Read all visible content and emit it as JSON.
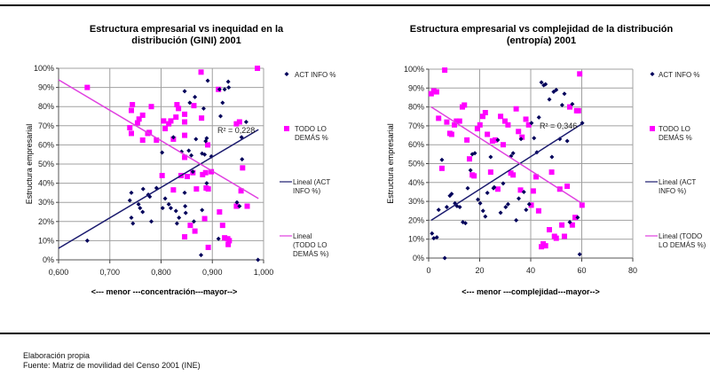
{
  "colors": {
    "act": "#00005A",
    "other": "#FF00FF",
    "trend_act": "#1A1A6E",
    "trend_other": "#E040E0",
    "grid": "#A0A0A0"
  },
  "legend": {
    "act": "ACT INFO %",
    "other": "TODO LO DEMÁS %",
    "trend_act": "Lineal (ACT INFO %)",
    "trend_other": "Lineal (TODO LO DEMÁS %)"
  },
  "footer": {
    "line1": "Elaboración propia",
    "line2": "Fuente: Matriz de movilidad del Censo 2001 (INE)"
  },
  "chart_data": [
    {
      "type": "scatter",
      "title": "Estructura empresarial vs inequidad en la distribución (GINI) 2001",
      "title_lines": [
        "Estructura empresarial vs inequidad en la",
        "distribución (GINI) 2001"
      ],
      "xlabel": "<--- menor ---concentración---mayor-->",
      "ylabel": "Estructura empresarial",
      "xlim": [
        0.6,
        1.0
      ],
      "ylim": [
        0,
        100
      ],
      "xticks": [
        "0,600",
        "0,700",
        "0,800",
        "0,900",
        "1,000"
      ],
      "yticks": [
        "0%",
        "10%",
        "20%",
        "30%",
        "40%",
        "50%",
        "60%",
        "70%",
        "80%",
        "90%",
        "100%"
      ],
      "grid": true,
      "legend_position": "right",
      "r_squared_label": "R² = 0,228",
      "series": [
        {
          "name": "ACT INFO %",
          "marker": "diamond",
          "points": [
            [
              0.656,
              10
            ],
            [
              0.742,
              35
            ],
            [
              0.739,
              31
            ],
            [
              0.742,
              22
            ],
            [
              0.745,
              19
            ],
            [
              0.765,
              37
            ],
            [
              0.756,
              29
            ],
            [
              0.759,
              27
            ],
            [
              0.764,
              25
            ],
            [
              0.775,
              34
            ],
            [
              0.778,
              33
            ],
            [
              0.781,
              20
            ],
            [
              0.791,
              37.5
            ],
            [
              0.802,
              56
            ],
            [
              0.803,
              27
            ],
            [
              0.808,
              32
            ],
            [
              0.815,
              29
            ],
            [
              0.819,
              27
            ],
            [
              0.824,
              64
            ],
            [
              0.829,
              25.5
            ],
            [
              0.831,
              19
            ],
            [
              0.835,
              22
            ],
            [
              0.84,
              56.5
            ],
            [
              0.846,
              88
            ],
            [
              0.846,
              35
            ],
            [
              0.847,
              28
            ],
            [
              0.848,
              24.5
            ],
            [
              0.854,
              57
            ],
            [
              0.856,
              82
            ],
            [
              0.859,
              54.5
            ],
            [
              0.862,
              46
            ],
            [
              0.864,
              20
            ],
            [
              0.866,
              85
            ],
            [
              0.868,
              63
            ],
            [
              0.878,
              2.5
            ],
            [
              0.88,
              26
            ],
            [
              0.88,
              55.5
            ],
            [
              0.883,
              79
            ],
            [
              0.885,
              55
            ],
            [
              0.887,
              62
            ],
            [
              0.889,
              63.5
            ],
            [
              0.889,
              40
            ],
            [
              0.891,
              93.5
            ],
            [
              0.898,
              54
            ],
            [
              0.912,
              11
            ],
            [
              0.914,
              89
            ],
            [
              0.916,
              75
            ],
            [
              0.92,
              82
            ],
            [
              0.924,
              89
            ],
            [
              0.931,
              93
            ],
            [
              0.932,
              90
            ],
            [
              0.948,
              30
            ],
            [
              0.953,
              28
            ],
            [
              0.957,
              64
            ],
            [
              0.958,
              52.5
            ],
            [
              0.966,
              72
            ],
            [
              0.989,
              0
            ]
          ]
        },
        {
          "name": "TODO LO DEMÁS %",
          "marker": "square",
          "points": [
            [
              0.656,
              90
            ],
            [
              0.739,
              69
            ],
            [
              0.742,
              66
            ],
            [
              0.742,
              78
            ],
            [
              0.744,
              81
            ],
            [
              0.754,
              71.5
            ],
            [
              0.757,
              73.5
            ],
            [
              0.764,
              75.5
            ],
            [
              0.764,
              62.5
            ],
            [
              0.774,
              66
            ],
            [
              0.777,
              66.5
            ],
            [
              0.781,
              80
            ],
            [
              0.791,
              62.5
            ],
            [
              0.802,
              44
            ],
            [
              0.805,
              72.5
            ],
            [
              0.808,
              68.5
            ],
            [
              0.815,
              71
            ],
            [
              0.819,
              72.5
            ],
            [
              0.824,
              63
            ],
            [
              0.824,
              36.5
            ],
            [
              0.829,
              74.5
            ],
            [
              0.831,
              81
            ],
            [
              0.834,
              79
            ],
            [
              0.839,
              44
            ],
            [
              0.846,
              12
            ],
            [
              0.846,
              76
            ],
            [
              0.846,
              72
            ],
            [
              0.846,
              65
            ],
            [
              0.846,
              53.5
            ],
            [
              0.851,
              43.5
            ],
            [
              0.857,
              18
            ],
            [
              0.862,
              45.5
            ],
            [
              0.864,
              80.5
            ],
            [
              0.866,
              15
            ],
            [
              0.869,
              37
            ],
            [
              0.878,
              98
            ],
            [
              0.879,
              74
            ],
            [
              0.881,
              44.5
            ],
            [
              0.885,
              21.5
            ],
            [
              0.887,
              45.5
            ],
            [
              0.888,
              37.5
            ],
            [
              0.891,
              60
            ],
            [
              0.892,
              37
            ],
            [
              0.892,
              6.5
            ],
            [
              0.898,
              46
            ],
            [
              0.912,
              89
            ],
            [
              0.914,
              25
            ],
            [
              0.92,
              18
            ],
            [
              0.924,
              11.5
            ],
            [
              0.93,
              11
            ],
            [
              0.931,
              8
            ],
            [
              0.933,
              10
            ],
            [
              0.947,
              28
            ],
            [
              0.947,
              71
            ],
            [
              0.953,
              72
            ],
            [
              0.956,
              36
            ],
            [
              0.959,
              48
            ],
            [
              0.968,
              28
            ],
            [
              0.988,
              100
            ]
          ]
        }
      ],
      "trendlines": [
        {
          "name": "Lineal (ACT INFO %)",
          "x": [
            0.6,
            0.99
          ],
          "y": [
            6,
            68
          ]
        },
        {
          "name": "Lineal (TODO LO DEMÁS %)",
          "x": [
            0.6,
            0.99
          ],
          "y": [
            94,
            32
          ]
        }
      ]
    },
    {
      "type": "scatter",
      "title": "Estructura empresarial vs complejidad de la distribución (entropía) 2001",
      "title_lines": [
        "Estructura empresarial vs complejidad de la distribución",
        "(entropía) 2001"
      ],
      "xlabel": "<--- menor ---complejidad---mayor-->",
      "ylabel": "Estructura empresarial",
      "xlim": [
        0,
        80
      ],
      "ylim": [
        0,
        100
      ],
      "xticks": [
        "0",
        "20",
        "40",
        "60",
        "80"
      ],
      "yticks": [
        "0%",
        "10%",
        "20%",
        "30%",
        "40%",
        "50%",
        "60%",
        "70%",
        "80%",
        "90%",
        "100%"
      ],
      "grid": true,
      "legend_position": "right",
      "r_squared_label": "R² = 0,346",
      "series": [
        {
          "name": "ACT INFO %",
          "marker": "diamond",
          "points": [
            [
              1.3,
              13
            ],
            [
              2,
              10.5
            ],
            [
              3.2,
              11
            ],
            [
              3.9,
              25.5
            ],
            [
              5.2,
              52
            ],
            [
              6.3,
              0
            ],
            [
              7.1,
              27
            ],
            [
              8.3,
              33
            ],
            [
              9,
              34
            ],
            [
              10.3,
              29
            ],
            [
              11.1,
              27.5
            ],
            [
              12.2,
              27
            ],
            [
              13.4,
              19
            ],
            [
              14.4,
              18.5
            ],
            [
              15.3,
              37
            ],
            [
              16.4,
              46.5
            ],
            [
              17.1,
              55
            ],
            [
              18.1,
              55.5
            ],
            [
              19.3,
              31
            ],
            [
              20.2,
              29
            ],
            [
              21.3,
              25
            ],
            [
              22.2,
              22
            ],
            [
              23,
              34.5
            ],
            [
              24.3,
              53.5
            ],
            [
              25.4,
              37
            ],
            [
              25.7,
              37.5
            ],
            [
              27.1,
              62.5
            ],
            [
              28.2,
              24
            ],
            [
              29.2,
              39.5
            ],
            [
              30.2,
              27
            ],
            [
              31.1,
              28.5
            ],
            [
              32.3,
              54
            ],
            [
              33.1,
              55.5
            ],
            [
              34.3,
              20
            ],
            [
              35.3,
              31.5
            ],
            [
              36.2,
              63
            ],
            [
              37.3,
              35
            ],
            [
              38.2,
              25.5
            ],
            [
              39.4,
              28.5
            ],
            [
              40.3,
              71.5
            ],
            [
              41.3,
              63.5
            ],
            [
              42.4,
              56
            ],
            [
              43.2,
              74.5
            ],
            [
              44.2,
              93
            ],
            [
              45.1,
              91.5
            ],
            [
              45.8,
              92
            ],
            [
              47.3,
              84
            ],
            [
              48.3,
              53.5
            ],
            [
              49,
              88
            ],
            [
              50,
              89
            ],
            [
              51.4,
              63
            ],
            [
              52.3,
              81
            ],
            [
              53.2,
              87
            ],
            [
              54.3,
              62
            ],
            [
              55.3,
              19
            ],
            [
              56.3,
              81.5
            ],
            [
              58.4,
              21.5
            ],
            [
              59.2,
              2
            ],
            [
              60.2,
              71.5
            ]
          ]
        },
        {
          "name": "TODO LO DEMÁS %",
          "marker": "square",
          "points": [
            [
              1,
              87
            ],
            [
              2,
              88.5
            ],
            [
              3.1,
              88
            ],
            [
              3.9,
              74
            ],
            [
              5.2,
              47.5
            ],
            [
              6.3,
              99.5
            ],
            [
              7.1,
              72
            ],
            [
              8.3,
              66
            ],
            [
              9,
              65.5
            ],
            [
              10.1,
              70.5
            ],
            [
              10.9,
              72.5
            ],
            [
              12.1,
              72.5
            ],
            [
              13.2,
              80
            ],
            [
              14,
              81
            ],
            [
              15,
              62.5
            ],
            [
              16,
              52.5
            ],
            [
              17.1,
              44
            ],
            [
              17.8,
              43.5
            ],
            [
              19.1,
              68.5
            ],
            [
              20.1,
              70.5
            ],
            [
              21.2,
              75
            ],
            [
              22.2,
              77
            ],
            [
              23,
              65.5
            ],
            [
              24.3,
              45.5
            ],
            [
              25,
              62
            ],
            [
              26.1,
              62.5
            ],
            [
              27.1,
              36.5
            ],
            [
              28.2,
              75
            ],
            [
              29.2,
              60
            ],
            [
              29.9,
              72.5
            ],
            [
              31.1,
              70.5
            ],
            [
              32.2,
              45
            ],
            [
              33.1,
              44
            ],
            [
              34.3,
              79
            ],
            [
              35.2,
              67
            ],
            [
              36,
              36
            ],
            [
              36.6,
              64
            ],
            [
              38.1,
              73.5
            ],
            [
              39.2,
              70.5
            ],
            [
              40.2,
              28
            ],
            [
              41,
              35.5
            ],
            [
              42.1,
              43
            ],
            [
              43.1,
              25
            ],
            [
              44.2,
              6
            ],
            [
              44.9,
              7.5
            ],
            [
              45.8,
              6.5
            ],
            [
              47.3,
              15
            ],
            [
              48.2,
              45.5
            ],
            [
              49.3,
              11.5
            ],
            [
              50,
              10.5
            ],
            [
              51.4,
              36.5
            ],
            [
              52.2,
              17.5
            ],
            [
              53.2,
              11.5
            ],
            [
              54.3,
              38
            ],
            [
              55.3,
              80
            ],
            [
              56.3,
              17.5
            ],
            [
              57.4,
              21.5
            ],
            [
              58,
              78
            ],
            [
              58.7,
              78
            ],
            [
              59.2,
              97.5
            ],
            [
              60.1,
              28
            ]
          ]
        }
      ],
      "trendlines": [
        {
          "name": "Lineal (ACT INFO %)",
          "x": [
            1,
            60
          ],
          "y": [
            20,
            71
          ]
        },
        {
          "name": "Lineal (TODO LO DEMÁS %)",
          "x": [
            1,
            60
          ],
          "y": [
            80,
            29
          ]
        }
      ]
    }
  ]
}
